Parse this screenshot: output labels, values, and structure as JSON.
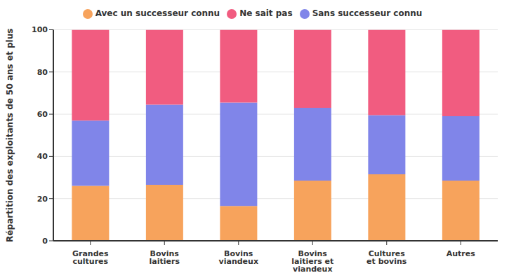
{
  "chart_data": {
    "type": "bar",
    "stacked": true,
    "y_label": "Répartition des exploitants de 50 ans et plus",
    "categories": [
      "Grandes cultures",
      "Bovins laitiers",
      "Bovins viandeux",
      "Bovins laitiers et viandeux",
      "Cultures et bovins",
      "Autres"
    ],
    "series": [
      {
        "name": "Avec un successeur connu",
        "color": "#f7a35c",
        "values": [
          26,
          26.5,
          16.5,
          28.5,
          31.5,
          28.5
        ]
      },
      {
        "name": "Sans successeur connu",
        "color": "#8085e9",
        "values": [
          31,
          38,
          49,
          34.5,
          28,
          30.5
        ]
      },
      {
        "name": "Ne sait pas",
        "color": "#f15c80",
        "values": [
          43,
          35.5,
          34.5,
          37,
          40.5,
          41
        ]
      }
    ],
    "ylim": [
      0,
      100
    ],
    "yticks": [
      0,
      20,
      40,
      60,
      80,
      100
    ],
    "grid": true,
    "legend": "top"
  }
}
